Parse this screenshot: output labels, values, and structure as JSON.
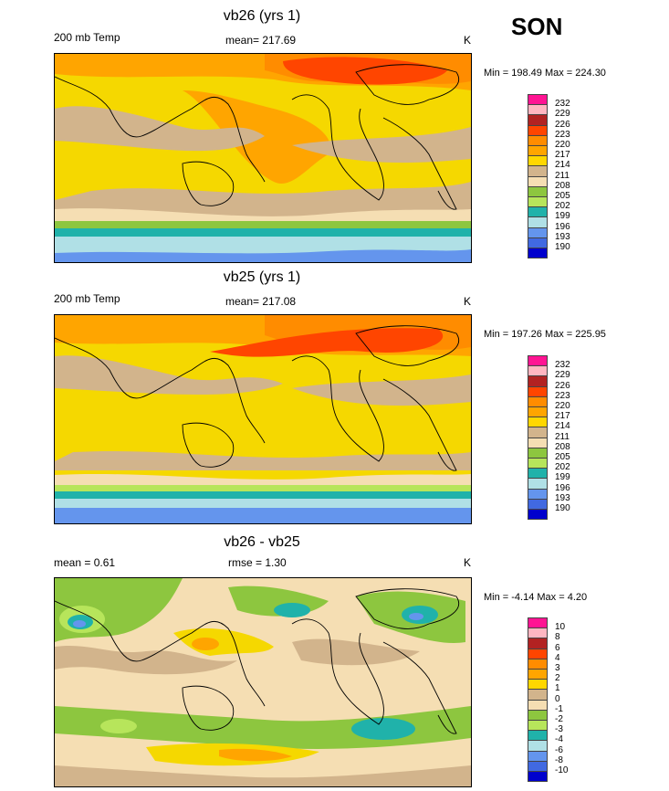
{
  "season": "SON",
  "colors": {
    "pink": "#ff1493",
    "lightpink": "#ffb6c1",
    "firebrick": "#b22222",
    "redorange": "#ff4500",
    "darkorange": "#ff8c00",
    "orange": "#ffa500",
    "gold": "#ffd700",
    "tan": "#d2b48c",
    "cream": "#f5deb3",
    "olivegreen": "#8dc63f",
    "lightgreen": "#b7e55b",
    "teal": "#20b2aa",
    "lightcyan": "#b0e0e6",
    "cornflower": "#6495ed",
    "royalblue": "#4169e1",
    "navy": "#0000cd",
    "lavender": "#9370db"
  },
  "chart_data": [
    {
      "type": "heatmap",
      "title": "vb26 (yrs 1)",
      "left_label": "200 mb Temp",
      "center_label": "mean= 217.69",
      "right_label": "K",
      "minmax": "Min = 198.49 Max = 224.30",
      "legend_levels": [
        "232",
        "229",
        "226",
        "223",
        "220",
        "217",
        "214",
        "211",
        "208",
        "205",
        "202",
        "199",
        "196",
        "193",
        "190"
      ]
    },
    {
      "type": "heatmap",
      "title": "vb25 (yrs 1)",
      "left_label": "200 mb Temp",
      "center_label": "mean= 217.08",
      "right_label": "K",
      "minmax": "Min = 197.26 Max = 225.95",
      "legend_levels": [
        "232",
        "229",
        "226",
        "223",
        "220",
        "217",
        "214",
        "211",
        "208",
        "205",
        "202",
        "199",
        "196",
        "193",
        "190"
      ]
    },
    {
      "type": "heatmap",
      "title": "vb26 - vb25",
      "left_label": "mean =   0.61",
      "center_label": "rmse =   1.30",
      "right_label": "K",
      "minmax": "Min =  -4.14 Max =   4.20",
      "legend_levels": [
        "10",
        "8",
        "6",
        "4",
        "3",
        "2",
        "1",
        "0",
        "-1",
        "-2",
        "-3",
        "-4",
        "-6",
        "-8",
        "-10"
      ]
    }
  ]
}
